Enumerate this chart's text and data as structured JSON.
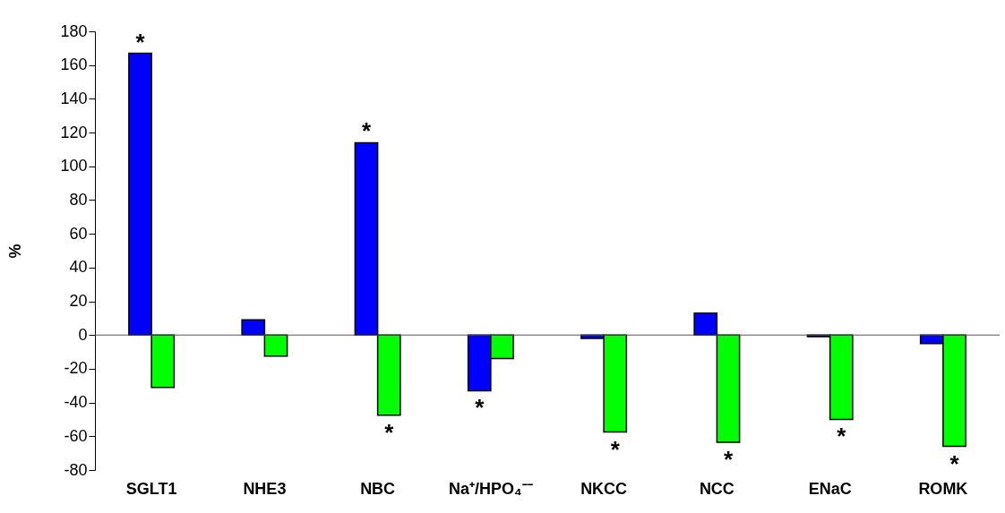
{
  "chart_data": {
    "type": "bar",
    "ylabel": "%",
    "categories": [
      "SGLT1",
      "NHE3",
      "NBC",
      "Na⁺/HPO₄⁻⁻",
      "NKCC",
      "NCC",
      "ENaC",
      "ROMK"
    ],
    "series": [
      {
        "color": "#0000ff",
        "values": [
          167,
          9,
          114,
          -33,
          -2,
          13,
          -1,
          -5
        ]
      },
      {
        "color": "#00ff00",
        "values": [
          -31,
          -12.5,
          -47.5,
          -14,
          -57.5,
          -63.5,
          -50,
          -66
        ]
      }
    ],
    "ylim": [
      -80,
      180
    ],
    "yticks": [
      -80,
      -60,
      -40,
      -20,
      0,
      20,
      40,
      60,
      80,
      100,
      120,
      140,
      160,
      180
    ],
    "grid": false,
    "legend": false,
    "ref_lines": [
      {
        "axis": "y",
        "value": 0
      }
    ],
    "annotations": [
      {
        "text": "*",
        "x": "SGLT1",
        "y": 167
      },
      {
        "text": "*",
        "x": "NBC",
        "y": 114
      },
      {
        "text": "*",
        "x": "NBC",
        "y": -47.5
      },
      {
        "text": "*",
        "x": "Na⁺/HPO₄⁻⁻",
        "y": -33
      },
      {
        "text": "*",
        "x": "NKCC",
        "y": -57.5
      },
      {
        "text": "*",
        "x": "NCC",
        "y": -63.5
      },
      {
        "text": "*",
        "x": "ENaC",
        "y": -50
      },
      {
        "text": "*",
        "x": "ROMK",
        "y": -66
      }
    ]
  }
}
